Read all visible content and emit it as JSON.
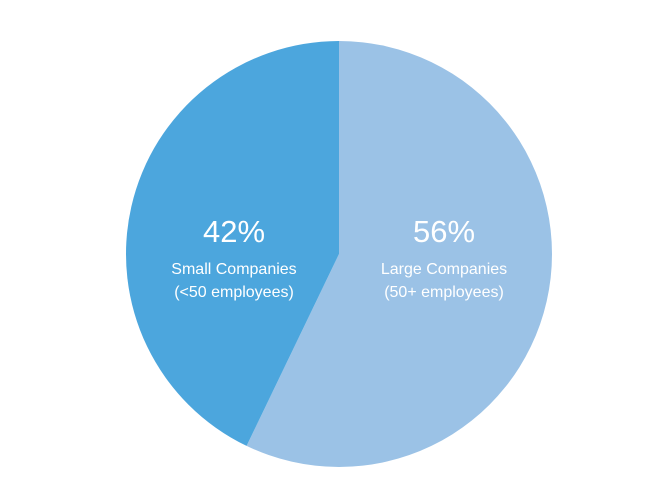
{
  "chart_data": {
    "type": "pie",
    "slices": [
      {
        "value": 42,
        "value_label": "42%",
        "label_lines": [
          "Small Companies",
          "(<50 employees)"
        ],
        "color": "#4ca6dd"
      },
      {
        "value": 56,
        "value_label": "56%",
        "label_lines": [
          "Large Companies",
          "(50+ employees)"
        ],
        "color": "#9bc2e6"
      }
    ],
    "title": "",
    "legend": "none"
  }
}
